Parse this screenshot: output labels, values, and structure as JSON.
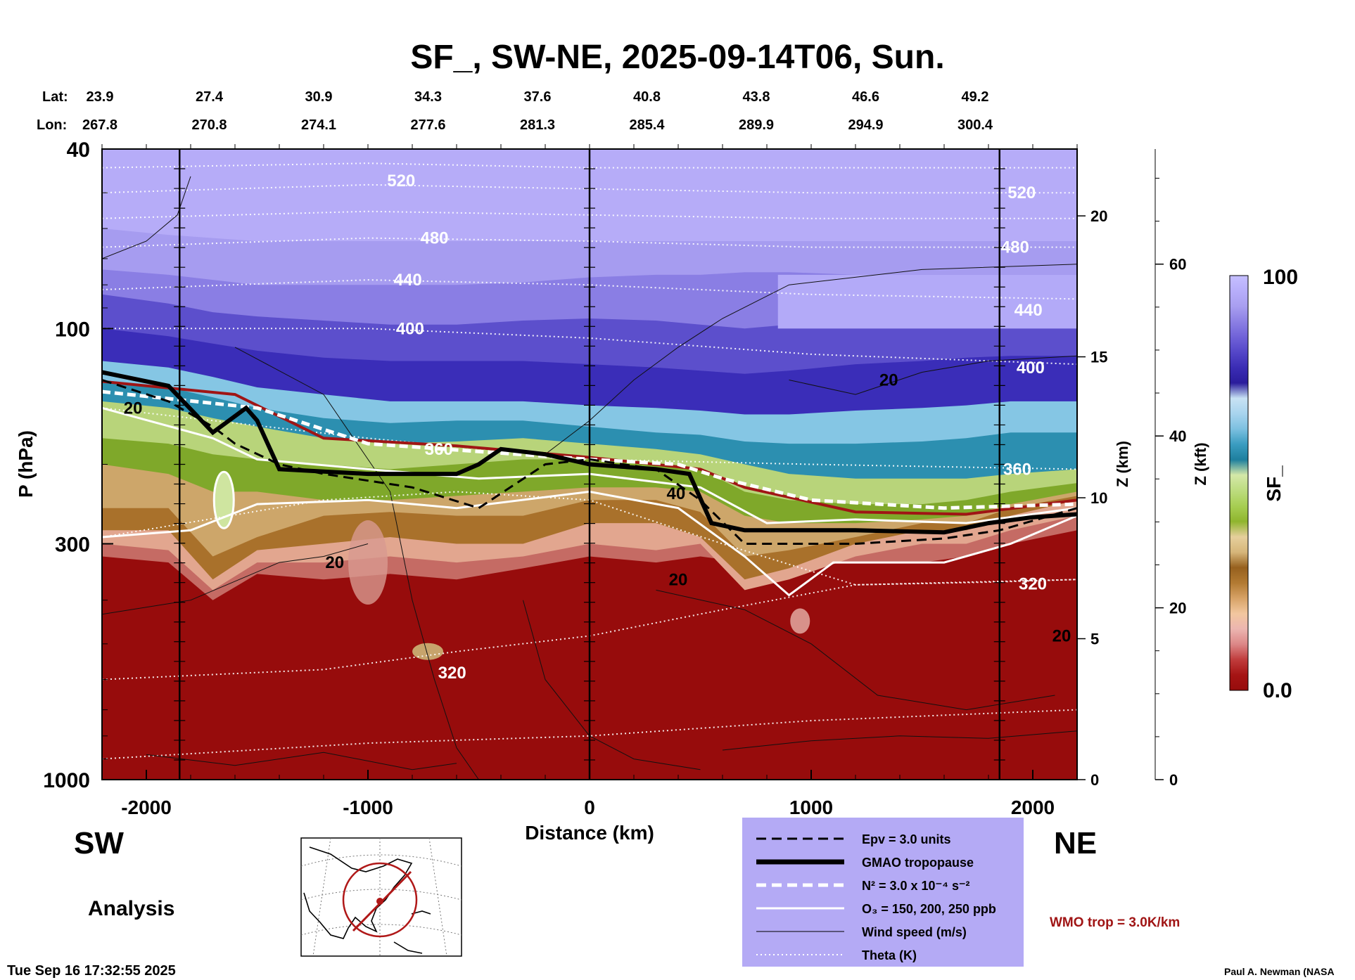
{
  "chart_data": {
    "type": "heatmap",
    "title": "SF_, SW-NE, 2025-09-14T06, Sun.",
    "xlabel": "Distance (km)",
    "ylabel": "P (hPa)",
    "z_km_label": "Z (km)",
    "z_kft_label": "Z (kft)",
    "colorbar_label": "SF_",
    "colorbar_max_label": "100",
    "colorbar_min_label": "0.0",
    "colorbar_range": [
      0,
      100
    ],
    "colorbar_colors": [
      "#970c0c",
      "#a51414",
      "#c03c3c",
      "#dc8787",
      "#ecb5b0",
      "#f2c79f",
      "#d7a266",
      "#b27a32",
      "#96601e",
      "#d6b67a",
      "#e6cf9c",
      "#8fb52e",
      "#a7ce52",
      "#bcdc7e",
      "#d4e8a8",
      "#1e7f9e",
      "#3a9cc0",
      "#7cc0e0",
      "#a8d4ee",
      "#c8e2f4",
      "#2b1d9c",
      "#3a2cb4",
      "#5446c8",
      "#7062d8",
      "#8c80e4",
      "#a89ef0",
      "#b7aefa",
      "#c5bfff"
    ],
    "xlim": [
      -2200,
      2200
    ],
    "ylim": [
      1000,
      40
    ],
    "x_ticks": [
      "-2000",
      "-1000",
      "0",
      "1000",
      "2000"
    ],
    "y_ticks": [
      "40",
      "100",
      "300",
      "1000"
    ],
    "z_km_ticks": [
      "0",
      "5",
      "10",
      "15",
      "20"
    ],
    "z_kft_ticks": [
      "0",
      "20",
      "40",
      "60"
    ],
    "lat_label": "Lat:",
    "lon_label": "Lon:",
    "lat_values": [
      "23.9",
      "27.4",
      "30.9",
      "34.3",
      "37.6",
      "40.8",
      "43.8",
      "46.6",
      "49.2"
    ],
    "lon_values": [
      "267.8",
      "270.8",
      "274.1",
      "277.6",
      "281.3",
      "285.4",
      "289.9",
      "294.9",
      "300.4"
    ],
    "vertical_markers_km": [
      -1850,
      0,
      1850
    ],
    "theta_labels": [
      {
        "text": "520",
        "x": -850,
        "p": 47
      },
      {
        "text": "480",
        "x": -700,
        "p": 63
      },
      {
        "text": "440",
        "x": -820,
        "p": 78
      },
      {
        "text": "400",
        "x": -810,
        "p": 100
      },
      {
        "text": "360",
        "x": -680,
        "p": 185
      },
      {
        "text": "320",
        "x": -620,
        "p": 580
      },
      {
        "text": "520",
        "x": 1950,
        "p": 50
      },
      {
        "text": "480",
        "x": 1920,
        "p": 66
      },
      {
        "text": "440",
        "x": 1980,
        "p": 91
      },
      {
        "text": "400",
        "x": 1990,
        "p": 122
      },
      {
        "text": "360",
        "x": 1930,
        "p": 205
      },
      {
        "text": "320",
        "x": 2000,
        "p": 368
      }
    ],
    "wind_labels": [
      {
        "text": "20",
        "x": -2060,
        "p": 150
      },
      {
        "text": "20",
        "x": -1150,
        "p": 330
      },
      {
        "text": "20",
        "x": 400,
        "p": 360
      },
      {
        "text": "40",
        "x": 390,
        "p": 232
      },
      {
        "text": "20",
        "x": 1350,
        "p": 130
      },
      {
        "text": "20",
        "x": 2130,
        "p": 480
      }
    ],
    "tropopause_gmao_p": [
      [
        -2200,
        125
      ],
      [
        -1900,
        134
      ],
      [
        -1700,
        170
      ],
      [
        -1550,
        150
      ],
      [
        -1500,
        160
      ],
      [
        -1400,
        205
      ],
      [
        -1000,
        210
      ],
      [
        -600,
        210
      ],
      [
        -500,
        200
      ],
      [
        -400,
        185
      ],
      [
        -200,
        190
      ],
      [
        0,
        200
      ],
      [
        300,
        205
      ],
      [
        450,
        210
      ],
      [
        550,
        270
      ],
      [
        700,
        280
      ],
      [
        1200,
        280
      ],
      [
        1600,
        283
      ],
      [
        1800,
        270
      ],
      [
        2000,
        262
      ],
      [
        2200,
        258
      ]
    ],
    "epv_line_p": [
      [
        -2200,
        130
      ],
      [
        -1900,
        145
      ],
      [
        -1700,
        165
      ],
      [
        -1600,
        180
      ],
      [
        -1400,
        200
      ],
      [
        -1200,
        210
      ],
      [
        -800,
        225
      ],
      [
        -500,
        250
      ],
      [
        -200,
        200
      ],
      [
        0,
        195
      ],
      [
        300,
        205
      ],
      [
        500,
        240
      ],
      [
        700,
        300
      ],
      [
        1200,
        300
      ],
      [
        1600,
        292
      ],
      [
        1850,
        280
      ],
      [
        2200,
        250
      ]
    ],
    "n2_line_p": [
      [
        -2200,
        138
      ],
      [
        -1500,
        150
      ],
      [
        -1000,
        180
      ],
      [
        0,
        195
      ],
      [
        400,
        200
      ],
      [
        600,
        215
      ],
      [
        1000,
        240
      ],
      [
        1600,
        250
      ],
      [
        2200,
        245
      ]
    ],
    "wmo_trop_p": [
      [
        -2200,
        131
      ],
      [
        -1600,
        140
      ],
      [
        -1200,
        175
      ],
      [
        -600,
        182
      ],
      [
        0,
        193
      ],
      [
        500,
        205
      ],
      [
        700,
        225
      ],
      [
        1200,
        255
      ],
      [
        1700,
        258
      ],
      [
        2200,
        240
      ]
    ],
    "legend": [
      {
        "style": "dashed-black",
        "label": "Epv = 3.0 units"
      },
      {
        "style": "thick-black",
        "label": "GMAO tropopause"
      },
      {
        "style": "dashed-white",
        "label": "N² = 3.0 x 10⁻⁴ s⁻²"
      },
      {
        "style": "white",
        "label": "O₃ = 150, 200, 250 ppb"
      },
      {
        "style": "thin-black",
        "label": "Wind speed (m/s)"
      },
      {
        "style": "dotted-white",
        "label": "Theta (K)"
      }
    ],
    "wmo_trop_label": "WMO trop = 3.0K/km",
    "left_label": "SW",
    "right_label": "NE",
    "analysis_label": "Analysis",
    "timestamp": "Tue Sep 16 17:32:55 2025",
    "credit": "Paul A. Newman (NASA"
  },
  "colors": {
    "panel_bg": "#b4aaf5",
    "wmo": "#a01515",
    "dark_red": "#970c0c"
  }
}
